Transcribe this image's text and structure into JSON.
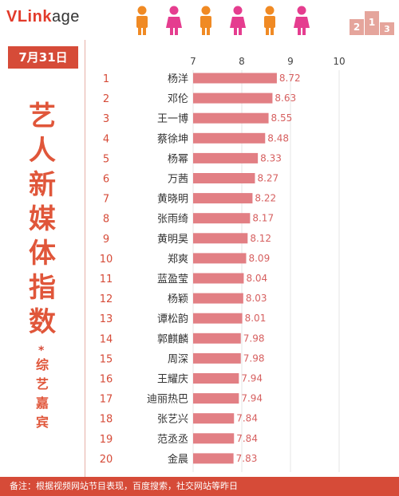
{
  "header": {
    "logo_brand": "VLinkage",
    "logo_highlight": "VLink",
    "logo_rest": "age",
    "podium_digits": [
      "2",
      "1",
      "3"
    ],
    "figure_colors": [
      "#f08a24",
      "#e53d8f",
      "#f08a24",
      "#e53d8f",
      "#f08a24",
      "#e53d8f"
    ]
  },
  "sidebar": {
    "date": "7月31日",
    "title": "艺人新媒体指数",
    "marker": "*",
    "subtitle": "综艺嘉宾"
  },
  "footer": {
    "note": "备注：根据视频网站节目表现，百度搜索，社交网站等昨日"
  },
  "colors": {
    "accent": "#d64b38",
    "bar": "#e27f84",
    "title": "#e0563a"
  },
  "chart_data": {
    "type": "bar",
    "orientation": "horizontal",
    "title": "",
    "xlabel": "",
    "ylabel": "",
    "xlim": [
      7,
      10
    ],
    "xticks": [
      7,
      8,
      9,
      10
    ],
    "grid": true,
    "ranks": [
      "1",
      "2",
      "3",
      "4",
      "5",
      "6",
      "7",
      "8",
      "9",
      "10",
      "11",
      "12",
      "13",
      "14",
      "15",
      "16",
      "17",
      "18",
      "19",
      "20"
    ],
    "categories": [
      "杨洋",
      "邓伦",
      "王一博",
      "蔡徐坤",
      "杨幂",
      "万茜",
      "黄晓明",
      "张雨绮",
      "黄明昊",
      "郑爽",
      "蓝盈莹",
      "杨颖",
      "谭松韵",
      "郭麒麟",
      "周深",
      "王耀庆",
      "迪丽热巴",
      "张艺兴",
      "范丞丞",
      "金晨"
    ],
    "values": [
      8.72,
      8.63,
      8.55,
      8.48,
      8.33,
      8.27,
      8.22,
      8.17,
      8.12,
      8.09,
      8.04,
      8.03,
      8.01,
      7.98,
      7.98,
      7.94,
      7.94,
      7.84,
      7.84,
      7.83
    ],
    "value_labels": [
      "8.72",
      "8.63",
      "8.55",
      "8.48",
      "8.33",
      "8.27",
      "8.22",
      "8.17",
      "8.12",
      "8.09",
      "8.04",
      "8.03",
      "8.01",
      "7.98",
      "7.98",
      "7.94",
      "7.94",
      "7.84",
      "7.84",
      "7.83"
    ]
  }
}
